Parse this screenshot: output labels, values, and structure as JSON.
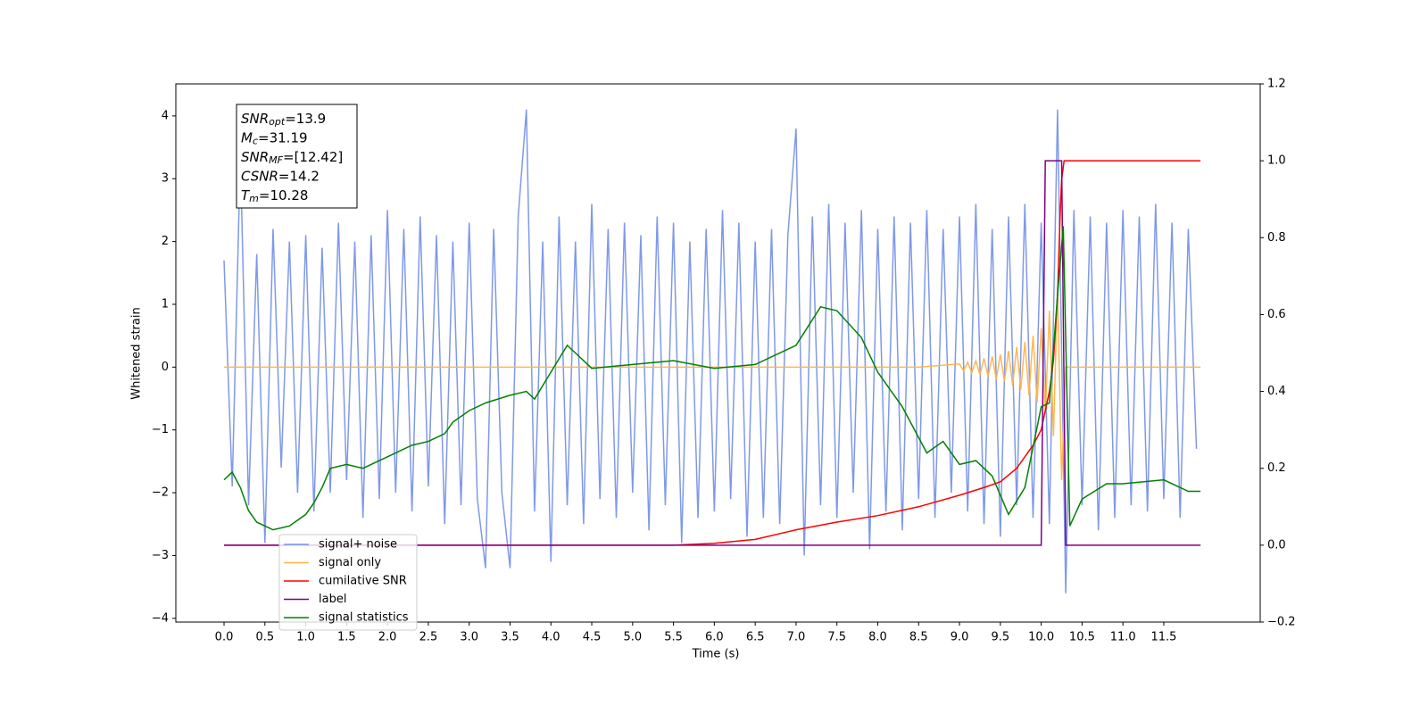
{
  "chart_data": {
    "type": "line",
    "xlabel": "Time (s)",
    "ylabel": "Whitened strain",
    "xlim": [
      -0.59,
      12.68
    ],
    "ylim": [
      -4.06,
      4.51
    ],
    "y2lim": [
      -0.2,
      1.2
    ],
    "xticks": [
      {
        "value": 0,
        "label": "0.0"
      },
      0.5,
      {
        "value": 1,
        "label": "1.0"
      },
      1.5,
      {
        "value": 2,
        "label": "2.0"
      },
      2.5,
      {
        "value": 3,
        "label": "3.0"
      },
      3.5,
      {
        "value": 4,
        "label": "4.0"
      },
      4.5,
      {
        "value": 5,
        "label": "5.0"
      },
      5.5,
      {
        "value": 6,
        "label": "6.0"
      },
      6.5,
      {
        "value": 7,
        "label": "7.0"
      },
      7.5,
      {
        "value": 8,
        "label": "8.0"
      },
      8.5,
      {
        "value": 9,
        "label": "9.0"
      },
      9.5,
      {
        "value": 10,
        "label": "10.0"
      },
      10.5,
      {
        "value": 11,
        "label": "11.0"
      },
      11.5
    ],
    "yticks": [
      {
        "value": -4,
        "label": "−4"
      },
      {
        "value": -3,
        "label": "−3"
      },
      {
        "value": -2,
        "label": "−2"
      },
      {
        "value": -1,
        "label": "−1"
      },
      0,
      1,
      2,
      3,
      4
    ],
    "y2ticks": [
      {
        "value": -0.2,
        "label": "−0.2"
      },
      {
        "value": 0,
        "label": "0.0"
      },
      0.2,
      0.4,
      0.6,
      0.8,
      {
        "value": 1,
        "label": "1.0"
      },
      1.2
    ],
    "legend": "lower left",
    "annotation": [
      {
        "name": "SNR",
        "sub": "opt",
        "text": "=13.9"
      },
      {
        "name": "M",
        "sub": "c",
        "text": "=31.19"
      },
      {
        "name": "SNR",
        "sub": "MF",
        "text": "=[12.42]"
      },
      {
        "name": "CSNR",
        "text": "=14.2"
      },
      {
        "name": "T",
        "sub": "m",
        "text": "=10.28"
      }
    ],
    "series": [
      {
        "name": "signal+ noise",
        "color": "#7893e8",
        "axis": "y",
        "x": [
          0.0,
          0.1,
          0.2,
          0.3,
          0.4,
          0.5,
          0.6,
          0.7,
          0.8,
          0.9,
          1.0,
          1.1,
          1.2,
          1.3,
          1.4,
          1.5,
          1.6,
          1.7,
          1.8,
          1.9,
          2.0,
          2.1,
          2.2,
          2.3,
          2.4,
          2.5,
          2.6,
          2.7,
          2.8,
          2.9,
          3.0,
          3.1,
          3.2,
          3.3,
          3.4,
          3.5,
          3.6,
          3.7,
          3.8,
          3.9,
          4.0,
          4.1,
          4.2,
          4.3,
          4.4,
          4.5,
          4.6,
          4.7,
          4.8,
          4.9,
          5.0,
          5.1,
          5.2,
          5.3,
          5.4,
          5.5,
          5.6,
          5.7,
          5.8,
          5.9,
          6.0,
          6.1,
          6.2,
          6.3,
          6.4,
          6.5,
          6.6,
          6.7,
          6.8,
          6.9,
          7.0,
          7.1,
          7.2,
          7.3,
          7.4,
          7.5,
          7.6,
          7.7,
          7.8,
          7.9,
          8.0,
          8.1,
          8.2,
          8.3,
          8.4,
          8.5,
          8.6,
          8.7,
          8.8,
          8.9,
          9.0,
          9.1,
          9.2,
          9.3,
          9.4,
          9.5,
          9.6,
          9.7,
          9.8,
          9.9,
          10.0,
          10.1,
          10.2,
          10.3,
          10.4,
          10.5,
          10.6,
          10.7,
          10.8,
          10.9,
          11.0,
          11.1,
          11.2,
          11.3,
          11.4,
          11.5,
          11.6,
          11.7,
          11.8,
          11.9
        ],
        "values": [
          1.7,
          -1.9,
          3.4,
          -2.2,
          1.8,
          -2.8,
          2.2,
          -1.6,
          2.0,
          -2.0,
          2.1,
          -2.3,
          1.9,
          -2.0,
          2.3,
          -1.8,
          2.0,
          -2.4,
          2.1,
          -2.1,
          2.5,
          -2.0,
          2.2,
          -2.3,
          2.4,
          -1.9,
          2.1,
          -2.5,
          2.0,
          -2.2,
          2.3,
          -2.1,
          -3.2,
          2.2,
          -2.0,
          -3.2,
          2.4,
          4.1,
          -2.3,
          2.0,
          -3.1,
          2.4,
          -2.2,
          2.0,
          -2.5,
          2.6,
          -2.1,
          2.2,
          -2.4,
          2.3,
          -2.0,
          2.1,
          -2.6,
          2.4,
          -2.2,
          2.3,
          -2.8,
          2.0,
          -2.4,
          2.2,
          -2.3,
          2.5,
          -2.1,
          2.3,
          -2.7,
          2.0,
          -2.4,
          2.2,
          -2.5,
          2.1,
          3.8,
          -3.0,
          2.4,
          -2.2,
          2.6,
          -2.4,
          2.3,
          -2.0,
          2.5,
          -2.9,
          2.2,
          -2.3,
          2.4,
          -2.6,
          2.3,
          -2.1,
          2.5,
          -2.4,
          2.2,
          -2.0,
          2.4,
          -2.3,
          2.6,
          -2.5,
          2.2,
          -2.7,
          2.4,
          -2.2,
          2.6,
          -2.4,
          2.3,
          -2.5,
          4.1,
          -3.6,
          2.5,
          -2.2,
          2.4,
          -2.6,
          2.3,
          -2.4,
          2.5,
          -2.2,
          2.4,
          -2.3,
          2.6,
          -2.1,
          2.3,
          -2.4,
          2.2,
          -1.3
        ]
      },
      {
        "name": "signal only",
        "color": "#ffb347",
        "axis": "y",
        "x": [
          0,
          8.5,
          9.0,
          9.05,
          9.1,
          9.15,
          9.2,
          9.25,
          9.3,
          9.35,
          9.4,
          9.45,
          9.5,
          9.55,
          9.6,
          9.65,
          9.7,
          9.75,
          9.8,
          9.85,
          9.9,
          9.95,
          10.0,
          10.05,
          10.1,
          10.15,
          10.2,
          10.25,
          10.3,
          11.95
        ],
        "values": [
          0,
          0,
          0.05,
          -0.06,
          0.08,
          -0.09,
          0.1,
          -0.12,
          0.14,
          -0.15,
          0.17,
          -0.19,
          0.2,
          -0.23,
          0.26,
          -0.29,
          0.32,
          -0.36,
          0.4,
          -0.45,
          0.5,
          -0.56,
          0.62,
          -0.75,
          0.9,
          -1.1,
          1.3,
          -1.8,
          0,
          0
        ]
      },
      {
        "name": "cumilative SNR",
        "color": "#ff0000",
        "axis": "y2",
        "x": [
          0,
          5.5,
          6.0,
          6.5,
          7.0,
          7.5,
          8.0,
          8.5,
          9.0,
          9.3,
          9.5,
          9.7,
          9.9,
          10.0,
          10.1,
          10.15,
          10.2,
          10.23,
          10.25,
          10.28,
          11.95
        ],
        "values": [
          0,
          0,
          0.005,
          0.015,
          0.04,
          0.06,
          0.077,
          0.1,
          0.13,
          0.15,
          0.165,
          0.2,
          0.26,
          0.3,
          0.4,
          0.48,
          0.65,
          0.85,
          0.95,
          1.0,
          1.0
        ]
      },
      {
        "name": "label",
        "color": "#800080",
        "axis": "y2",
        "x": [
          0,
          10.0,
          10.05,
          10.25,
          10.3,
          11.95
        ],
        "values": [
          0,
          0,
          1,
          1,
          0,
          0
        ]
      },
      {
        "name": "signal statistics",
        "color": "#008000",
        "axis": "y2",
        "x": [
          0,
          0.1,
          0.2,
          0.3,
          0.4,
          0.5,
          0.6,
          0.8,
          1.0,
          1.1,
          1.2,
          1.3,
          1.5,
          1.7,
          2.0,
          2.3,
          2.5,
          2.7,
          2.8,
          3.0,
          3.2,
          3.5,
          3.7,
          3.8,
          4.0,
          4.2,
          4.5,
          5.0,
          5.5,
          6.0,
          6.5,
          7.0,
          7.3,
          7.5,
          7.8,
          8.0,
          8.3,
          8.6,
          8.8,
          9.0,
          9.2,
          9.4,
          9.6,
          9.8,
          10.0,
          10.1,
          10.2,
          10.27,
          10.35,
          10.5,
          10.8,
          11.0,
          11.5,
          11.8,
          11.95
        ],
        "values": [
          0.17,
          0.19,
          0.15,
          0.09,
          0.06,
          0.05,
          0.04,
          0.05,
          0.08,
          0.11,
          0.15,
          0.2,
          0.21,
          0.2,
          0.23,
          0.26,
          0.27,
          0.29,
          0.32,
          0.35,
          0.37,
          0.39,
          0.4,
          0.38,
          0.45,
          0.52,
          0.46,
          0.47,
          0.48,
          0.46,
          0.47,
          0.52,
          0.62,
          0.61,
          0.54,
          0.45,
          0.36,
          0.24,
          0.27,
          0.21,
          0.22,
          0.18,
          0.08,
          0.15,
          0.36,
          0.37,
          0.65,
          0.83,
          0.05,
          0.12,
          0.16,
          0.16,
          0.17,
          0.14,
          0.14
        ]
      }
    ]
  }
}
